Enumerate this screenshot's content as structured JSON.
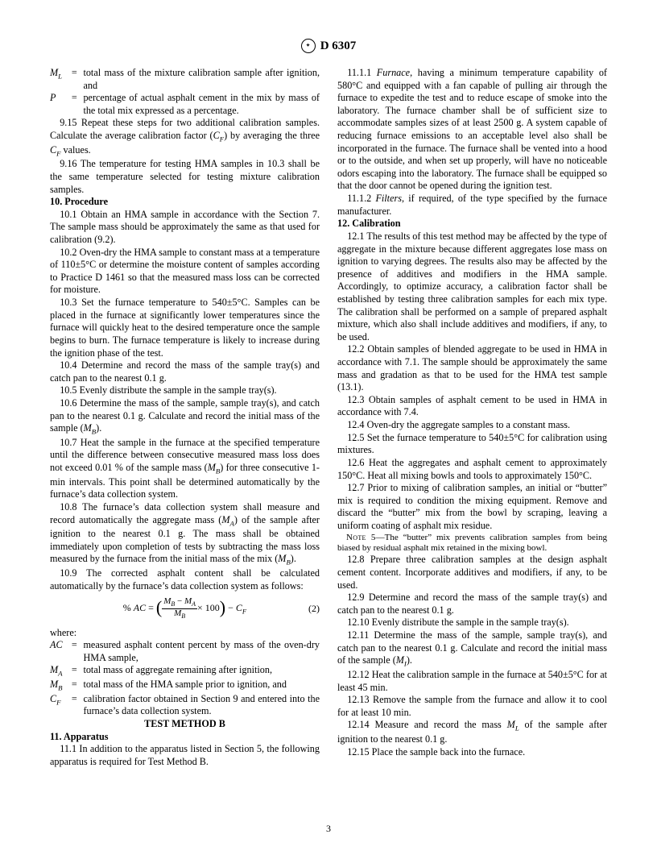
{
  "header": {
    "designation": "D 6307"
  },
  "defs_top": [
    {
      "sym": "M<sub>L</sub>",
      "txt": "total mass of the mixture calibration sample after ignition, and"
    },
    {
      "sym": "P",
      "txt": "percentage of actual asphalt cement in the mix by mass of the total mix expressed as a percentage."
    }
  ],
  "p9_15": "9.15 Repeat these steps for two additional calibration samples. Calculate the average calibration factor (<span class='ital'>C<sub>F</sub></span>) by averaging the three <span class='ital'>C<sub>F</sub></span> values.",
  "p9_16": "9.16 The temperature for testing HMA samples in 10.3 shall be the same temperature selected for testing mixture calibration samples.",
  "sec10": "10. Procedure",
  "p10_1": "10.1 Obtain an HMA sample in accordance with the Section 7. The sample mass should be approximately the same as that used for calibration (9.2).",
  "p10_2": "10.2 Oven-dry the HMA sample to constant mass at a temperature of 110±5°C or determine the moisture content of samples according to Practice D 1461 so that the measured mass loss can be corrected for moisture.",
  "p10_3": "10.3 Set the furnace temperature to 540±5°C. Samples can be placed in the furnace at significantly lower temperatures since the furnace will quickly heat to the desired temperature once the sample begins to burn. The furnace temperature is likely to increase during the ignition phase of the test.",
  "p10_4": "10.4 Determine and record the mass of the sample tray(s) and catch pan to the nearest 0.1 g.",
  "p10_5": "10.5 Evenly distribute the sample in the sample tray(s).",
  "p10_6": "10.6 Determine the mass of the sample, sample tray(s), and catch pan to the nearest 0.1 g. Calculate and record the initial mass of the sample (<span class='ital'>M<sub>B</sub></span>).",
  "p10_7": "10.7 Heat the sample in the furnace at the specified temperature until the difference between consecutive measured mass loss does not exceed 0.01 % of the sample mass (<span class='ital'>M<sub>B</sub></span>) for three consecutive 1-min intervals. This point shall be determined automatically by the furnace’s data collection system.",
  "p10_8": "10.8 The furnace’s data collection system shall measure and record automatically the aggregate mass (<span class='ital'>M<sub>A</sub></span>) of the sample after ignition to the nearest 0.1 g. The mass shall be obtained immediately upon completion of tests by subtracting the mass loss measured by the furnace from the initial mass of the mix (<span class='ital'>M<sub>B</sub></span>).",
  "p10_9": "10.9 The corrected asphalt content shall be calculated automatically by the furnace’s data collection system as follows:",
  "eq2": {
    "lhs": "% <span class='ital'>AC</span> =",
    "num": "<span class='ital'>M<sub>B</sub></span> − <span class='ital'>M<sub>A</sub></span>",
    "den": "<span class='ital'>M<sub>B</sub></span>",
    "tail": "× 100",
    "minusCF": "− <span class='ital'>C<sub>F</sub></span>",
    "num_label": "(2)"
  },
  "where_label": "where:",
  "defs_eq2": [
    {
      "sym": "AC",
      "txt": "measured asphalt content percent by mass of the oven-dry HMA sample,"
    },
    {
      "sym": "M<sub>A</sub>",
      "txt": "total mass of aggregate remaining after ignition,"
    },
    {
      "sym": "M<sub>B</sub>",
      "txt": "total mass of the HMA sample prior to ignition, and"
    },
    {
      "sym": "C<sub>F</sub>",
      "txt": "calibration factor obtained in Section 9 and entered into the furnace’s data collection system."
    }
  ],
  "tmB": "TEST METHOD B",
  "sec11": "11. Apparatus",
  "p11_1": "11.1 In addition to the apparatus listed in Section 5, the following apparatus is required for Test Method B.",
  "p11_1_1": "11.1.1 <span class='ital'>Furnace</span>, having a minimum temperature capability of 580°C and equipped with a fan capable of pulling air through the furnace to expedite the test and to reduce escape of smoke into the laboratory. The furnace chamber shall be of sufficient size to accommodate samples sizes of at least 2500 g. A system capable of reducing furnace emissions to an acceptable level also shall be incorporated in the furnace. The furnace shall be vented into a hood or to the outside, and when set up properly, will have no noticeable odors escaping into the laboratory. The furnace shall be equipped so that the door cannot be opened during the ignition test.",
  "p11_1_2": "11.1.2 <span class='ital'>Filters</span>, if required, of the type specified by the furnace manufacturer.",
  "sec12": "12. Calibration",
  "p12_1": "12.1 The results of this test method may be affected by the type of aggregate in the mixture because different aggregates lose mass on ignition to varying degrees. The results also may be affected by the presence of additives and modifiers in the HMA sample. Accordingly, to optimize accuracy, a calibration factor shall be established by testing three calibration samples for each mix type. The calibration shall be performed on a sample of prepared asphalt mixture, which also shall include additives and modifiers, if any, to be used.",
  "p12_2": "12.2 Obtain samples of blended aggregate to be used in HMA in accordance with 7.1. The sample should be approximately the same mass and gradation as that to be used for the HMA test sample (13.1).",
  "p12_3": "12.3 Obtain samples of asphalt cement to be used in HMA in accordance with 7.4.",
  "p12_4": "12.4 Oven-dry the aggregate samples to a constant mass.",
  "p12_5": "12.5 Set the furnace temperature to 540±5°C for calibration using mixtures.",
  "p12_6": "12.6 Heat the aggregates and asphalt cement to approximately 150°C. Heat all mixing bowls and tools to approximately 150°C.",
  "p12_7": "12.7 Prior to mixing of calibration samples, an initial or “butter” mix is required to condition the mixing equipment. Remove and discard the “butter” mix from the bowl by scraping, leaving a uniform coating of asphalt mix residue.",
  "note5": "<span class='note-label'>Note 5</span>—The “butter” mix prevents calibration samples from being biased by residual asphalt mix retained in the mixing bowl.",
  "p12_8": "12.8 Prepare three calibration samples at the design asphalt cement content. Incorporate additives and modifiers, if any, to be used.",
  "p12_9": "12.9 Determine and record the mass of the sample tray(s) and catch pan to the nearest 0.1 g.",
  "p12_10": "12.10 Evenly distribute the sample in the sample tray(s).",
  "p12_11": "12.11 Determine the mass of the sample, sample tray(s), and catch pan to the nearest 0.1 g. Calculate and record the initial mass of the sample (<span class='ital'>M<sub>I</sub></span>).",
  "p12_12": "12.12 Heat the calibration sample in the furnace at 540±5°C for at least 45 min.",
  "p12_13": "12.13 Remove the sample from the furnace and allow it to cool for at least 10 min.",
  "p12_14": "12.14 Measure and record the mass <span class='ital'>M<sub>L</sub></span> of the sample after ignition to the nearest 0.1 g.",
  "p12_15": "12.15 Place the sample back into the furnace.",
  "page_number": "3"
}
